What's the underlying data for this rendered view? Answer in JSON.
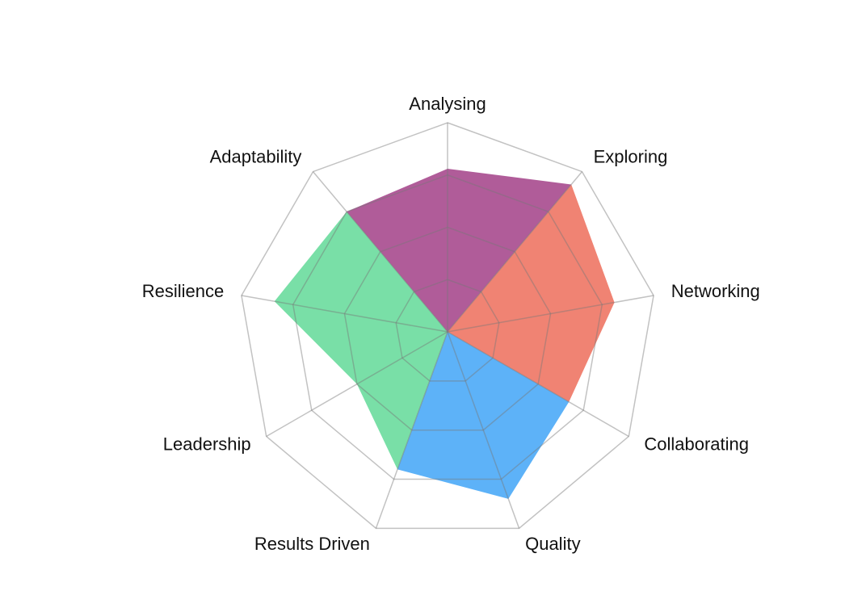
{
  "chart_data": {
    "type": "radar",
    "categories": [
      "Analysing",
      "Exploring",
      "Networking",
      "Collaborating",
      "Quality",
      "Results Driven",
      "Leadership",
      "Resilience",
      "Adaptability"
    ],
    "ylim": [
      0,
      100
    ],
    "yticks": [
      25,
      50,
      75,
      100
    ],
    "grid": true,
    "series": [
      {
        "color": "#b05c99",
        "values": [
          78,
          92,
          null,
          null,
          null,
          null,
          null,
          null,
          75
        ]
      },
      {
        "color": "#f08373",
        "values": [
          null,
          92,
          81,
          67,
          null,
          null,
          null,
          null,
          null
        ]
      },
      {
        "color": "#5db2f8",
        "values": [
          null,
          null,
          null,
          67,
          85,
          70,
          null,
          null,
          null
        ]
      },
      {
        "color": "#79dfa7",
        "values": [
          null,
          null,
          null,
          null,
          null,
          70,
          50,
          84,
          75
        ]
      }
    ]
  }
}
